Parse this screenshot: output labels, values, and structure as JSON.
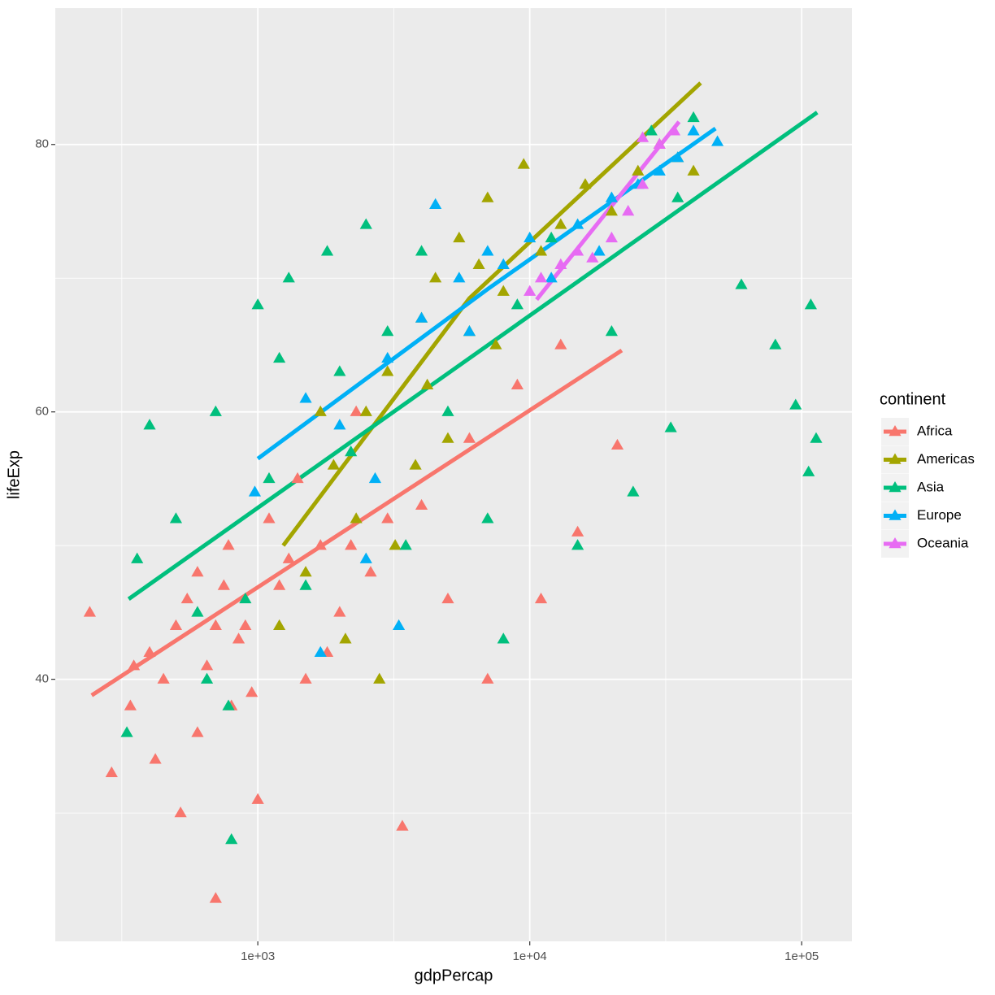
{
  "chart_data": {
    "type": "scatter",
    "x_label": "gdpPercap",
    "y_label": "lifeExp",
    "legend_title": "continent",
    "legend_position": "right",
    "xlog": true,
    "grid": true,
    "xlim": [
      180,
      153000
    ],
    "ylim": [
      20.4,
      90.2
    ],
    "xticks": [
      {
        "value": 1000,
        "label": "1e+03"
      },
      {
        "value": 10000,
        "label": "1e+04"
      },
      {
        "value": 100000,
        "label": "1e+05"
      }
    ],
    "x_minor_grid": [
      316.2,
      3162,
      31623
    ],
    "yticks": [
      40,
      60,
      80
    ],
    "y_minor_grid": [
      30,
      50,
      70
    ],
    "series": [
      {
        "name": "Africa",
        "color": "#F8766D",
        "x": [
          241,
          290,
          340,
          400,
          420,
          500,
          520,
          600,
          650,
          700,
          780,
          800,
          900,
          1000,
          1100,
          1200,
          1400,
          1500,
          1700,
          2000,
          2300,
          2600,
          3000,
          3400,
          4000,
          5000,
          6000,
          7000,
          9000,
          13000,
          21000,
          15000,
          11000,
          350,
          700,
          600,
          450,
          550,
          850,
          1300,
          1800,
          2200,
          750,
          950
        ],
        "values": [
          45,
          33,
          38,
          42,
          34,
          44,
          30,
          48,
          41,
          23.6,
          50,
          38,
          44,
          31,
          52,
          47,
          55,
          40,
          50,
          45,
          60,
          48,
          52,
          29,
          53,
          46,
          58,
          40,
          62,
          65,
          57.5,
          51,
          46,
          41,
          44,
          36,
          40,
          46,
          43,
          49,
          42,
          50,
          47,
          39
        ],
        "trend": {
          "x": [
            245,
            21800
          ],
          "values": [
            38.8,
            64.6
          ]
        }
      },
      {
        "name": "Americas",
        "color": "#A3A500",
        "x": [
          1200,
          1500,
          1900,
          2100,
          2500,
          3000,
          3200,
          4000,
          4500,
          5000,
          5500,
          6000,
          7000,
          8000,
          9500,
          11000,
          13000,
          16000,
          20000,
          25000,
          30000,
          35000,
          40000,
          2800,
          1700,
          3800,
          6500,
          7500,
          2300,
          4200
        ],
        "values": [
          44,
          48,
          56,
          43,
          60,
          63,
          50,
          67,
          70,
          58,
          73,
          66,
          76,
          69,
          78.5,
          72,
          74,
          77,
          75,
          78,
          80,
          79,
          78,
          40,
          60,
          56,
          71,
          65,
          52,
          62
        ],
        "trend": {
          "x": [
            1240,
            6000,
            42500
          ],
          "values": [
            50.0,
            68.5,
            84.6
          ]
        }
      },
      {
        "name": "Asia",
        "color": "#00BF7D",
        "x": [
          330,
          400,
          500,
          600,
          700,
          800,
          780,
          1000,
          1100,
          1300,
          1500,
          1800,
          2000,
          2500,
          3000,
          3500,
          4000,
          5000,
          7000,
          9000,
          12000,
          15000,
          20000,
          28000,
          35000,
          40000,
          60000,
          80000,
          95000,
          108000,
          113000,
          106000,
          33000,
          24000,
          8000,
          360,
          650,
          900,
          1200,
          2200
        ],
        "values": [
          36,
          59,
          52,
          45,
          60,
          28,
          38,
          68,
          55,
          70,
          47,
          72,
          63,
          74,
          66,
          50,
          72,
          60,
          52,
          68,
          73,
          50,
          66,
          81,
          76,
          82,
          69.5,
          65,
          60.5,
          68,
          58,
          55.5,
          58.8,
          54,
          43,
          49,
          40,
          46,
          64,
          57
        ],
        "trend": {
          "x": [
            335,
            114000
          ],
          "values": [
            46.0,
            82.4
          ]
        }
      },
      {
        "name": "Europe",
        "color": "#00B0F6",
        "x": [
          975,
          1500,
          2000,
          2700,
          3000,
          4000,
          4500,
          5500,
          6000,
          7000,
          8000,
          10000,
          12000,
          15000,
          18000,
          20000,
          25000,
          30000,
          35000,
          40000,
          49000,
          3300,
          1700,
          2500
        ],
        "values": [
          54,
          61,
          59,
          55,
          64,
          67,
          75.5,
          70,
          66,
          72,
          71,
          73,
          70,
          74,
          72,
          76,
          77,
          78,
          79,
          81,
          80.2,
          44,
          42,
          49
        ],
        "trend": {
          "x": [
            1000,
            7020,
            48200
          ],
          "values": [
            56.5,
            69.2,
            81.2
          ]
        }
      },
      {
        "name": "Oceania",
        "color": "#E76BF3",
        "x": [
          10000,
          11000,
          13000,
          15000,
          17000,
          20000,
          23000,
          26000,
          30000,
          34000,
          26000
        ],
        "values": [
          69,
          70,
          71,
          72,
          71.5,
          73,
          75,
          77,
          80,
          81,
          80.5
        ],
        "trend": {
          "x": [
            10600,
            35400
          ],
          "values": [
            68.4,
            81.7
          ]
        }
      }
    ]
  }
}
